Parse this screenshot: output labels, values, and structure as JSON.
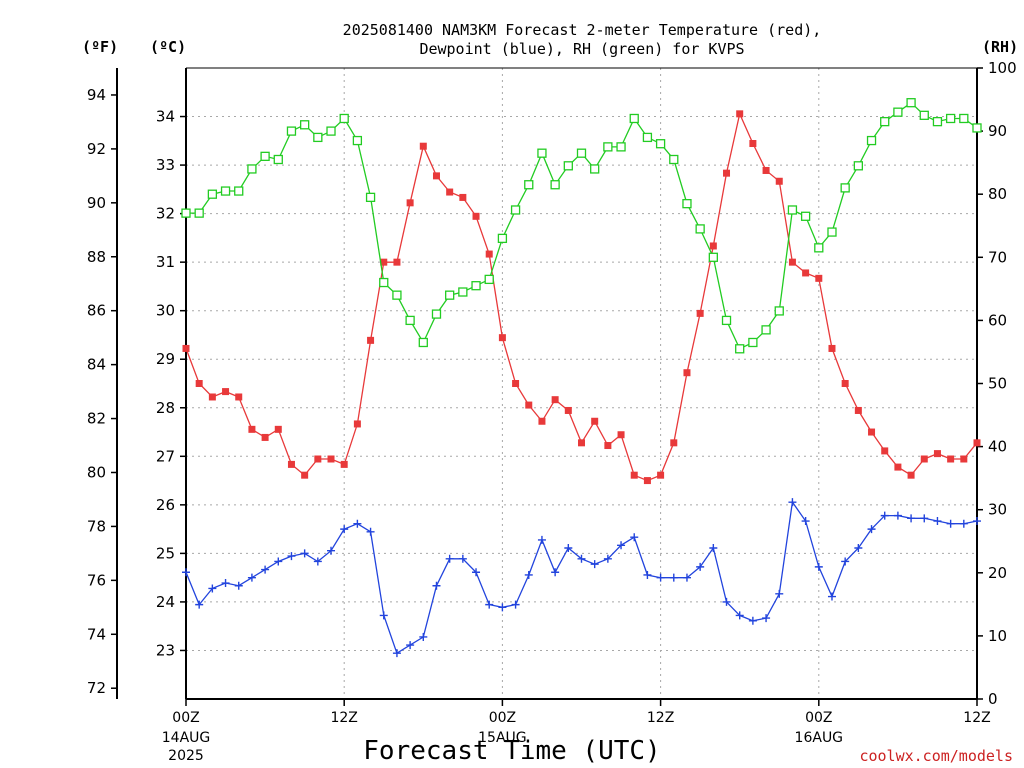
{
  "chart_data": {
    "type": "line",
    "title_line1": "2025081400 NAM3KM Forecast 2-meter Temperature (red),",
    "title_line2": "Dewpoint (blue), RH (green) for KVPS",
    "xlabel": "Forecast Time (UTC)",
    "credit": "coolwx.com/models",
    "units": {
      "fahrenheit": "(ºF)",
      "celsius": "(ºC)",
      "rh": "(RH)"
    },
    "x_range_hours": [
      0,
      60
    ],
    "x_ticks": [
      {
        "hour": 0,
        "label": "00Z",
        "sub": [
          "14AUG",
          "2025"
        ]
      },
      {
        "hour": 12,
        "label": "12Z",
        "sub": []
      },
      {
        "hour": 24,
        "label": "00Z",
        "sub": [
          "15AUG"
        ]
      },
      {
        "hour": 36,
        "label": "12Z",
        "sub": []
      },
      {
        "hour": 48,
        "label": "00Z",
        "sub": [
          "16AUG"
        ]
      },
      {
        "hour": 60,
        "label": "12Z",
        "sub": []
      }
    ],
    "celsius_ticks": [
      23,
      24,
      25,
      26,
      27,
      28,
      29,
      30,
      31,
      32,
      33,
      34
    ],
    "fahrenheit_ticks": [
      72,
      74,
      76,
      78,
      80,
      82,
      84,
      86,
      88,
      90,
      92,
      94
    ],
    "rh_ticks": [
      0,
      10,
      20,
      30,
      40,
      50,
      60,
      70,
      80,
      90,
      100
    ],
    "ylim_fahrenheit": [
      71.6,
      95.0
    ],
    "ylim_rh": [
      0,
      100
    ],
    "grid": true,
    "series": [
      {
        "name": "Temperature",
        "color": "#e8393a",
        "marker": "filled-square",
        "axis": "fahrenheit",
        "x": [
          0,
          1,
          2,
          3,
          4,
          5,
          6,
          7,
          8,
          9,
          10,
          11,
          12,
          13,
          14,
          15,
          16,
          17,
          18,
          19,
          20,
          21,
          22,
          23,
          24,
          25,
          26,
          27,
          28,
          29,
          30,
          31,
          32,
          33,
          34,
          35,
          36,
          37,
          38,
          39,
          40,
          41,
          42,
          43,
          44,
          45,
          46,
          47,
          48,
          49,
          50,
          51,
          52,
          53,
          54,
          55,
          56,
          57,
          58,
          59,
          60
        ],
        "values": [
          84.6,
          83.3,
          82.8,
          83.0,
          82.8,
          81.6,
          81.3,
          81.6,
          80.3,
          79.9,
          80.5,
          80.5,
          80.3,
          81.8,
          84.9,
          87.8,
          87.8,
          90.0,
          92.1,
          91.0,
          90.4,
          90.2,
          89.5,
          88.1,
          85.0,
          83.3,
          82.5,
          81.9,
          82.7,
          82.3,
          81.1,
          81.9,
          81.0,
          81.4,
          79.9,
          79.7,
          79.9,
          81.1,
          83.7,
          85.9,
          88.4,
          91.1,
          93.3,
          92.2,
          91.2,
          90.8,
          87.8,
          87.4,
          87.2,
          84.6,
          83.3,
          82.3,
          81.5,
          80.8,
          80.2,
          79.9,
          80.5,
          80.7,
          80.5,
          80.5,
          81.1
        ]
      },
      {
        "name": "Dewpoint",
        "color": "#2244dd",
        "marker": "plus",
        "axis": "fahrenheit",
        "x": [
          0,
          1,
          2,
          3,
          4,
          5,
          6,
          7,
          8,
          9,
          10,
          11,
          12,
          13,
          14,
          15,
          16,
          17,
          18,
          19,
          20,
          21,
          22,
          23,
          24,
          25,
          26,
          27,
          28,
          29,
          30,
          31,
          32,
          33,
          34,
          35,
          36,
          37,
          38,
          39,
          40,
          41,
          42,
          43,
          44,
          45,
          46,
          47,
          48,
          49,
          50,
          51,
          52,
          53,
          54,
          55,
          56,
          57,
          58,
          59,
          60
        ],
        "values": [
          76.3,
          75.1,
          75.7,
          75.9,
          75.8,
          76.1,
          76.4,
          76.7,
          76.9,
          77.0,
          76.7,
          77.1,
          77.9,
          78.1,
          77.8,
          74.7,
          73.3,
          73.6,
          73.9,
          75.8,
          76.8,
          76.8,
          76.3,
          75.1,
          75.0,
          75.1,
          76.2,
          77.5,
          76.3,
          77.2,
          76.8,
          76.6,
          76.8,
          77.3,
          77.6,
          76.2,
          76.1,
          76.1,
          76.1,
          76.5,
          77.2,
          75.2,
          74.7,
          74.5,
          74.6,
          75.5,
          78.9,
          78.2,
          76.5,
          75.4,
          76.7,
          77.2,
          77.9,
          78.4,
          78.4,
          78.3,
          78.3,
          78.2,
          78.1,
          78.1,
          78.2
        ]
      },
      {
        "name": "RH",
        "color": "#22cc22",
        "marker": "open-square",
        "axis": "rh",
        "x": [
          0,
          1,
          2,
          3,
          4,
          5,
          6,
          7,
          8,
          9,
          10,
          11,
          12,
          13,
          14,
          15,
          16,
          17,
          18,
          19,
          20,
          21,
          22,
          23,
          24,
          25,
          26,
          27,
          28,
          29,
          30,
          31,
          32,
          33,
          34,
          35,
          36,
          37,
          38,
          39,
          40,
          41,
          42,
          43,
          44,
          45,
          46,
          47,
          48,
          49,
          50,
          51,
          52,
          53,
          54,
          55,
          56,
          57,
          58,
          59,
          60
        ],
        "values": [
          77,
          77,
          80,
          80.5,
          80.5,
          84,
          86,
          85.5,
          90,
          91,
          89,
          90,
          92,
          88.5,
          79.5,
          66,
          64,
          60,
          56.5,
          61,
          64,
          64.5,
          65.5,
          66.5,
          73,
          77.5,
          81.5,
          86.5,
          81.5,
          84.5,
          86.5,
          84,
          87.5,
          87.5,
          92,
          89,
          88,
          85.5,
          78.5,
          74.5,
          70,
          60,
          55.5,
          56.5,
          58.5,
          61.5,
          77.5,
          76.5,
          71.5,
          74,
          81,
          84.5,
          88.5,
          91.5,
          93,
          94.5,
          92.5,
          91.5,
          92,
          92,
          90.5
        ]
      }
    ]
  }
}
